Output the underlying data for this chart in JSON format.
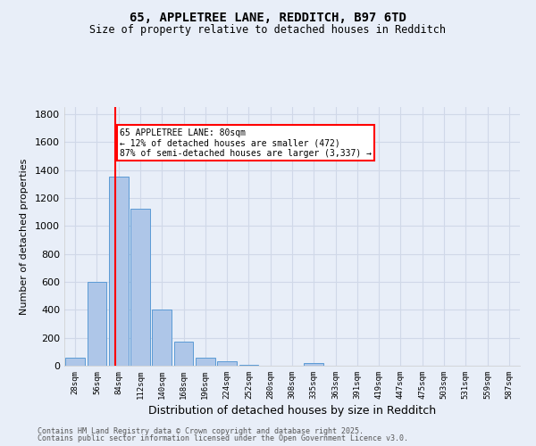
{
  "title1": "65, APPLETREE LANE, REDDITCH, B97 6TD",
  "title2": "Size of property relative to detached houses in Redditch",
  "xlabel": "Distribution of detached houses by size in Redditch",
  "ylabel": "Number of detached properties",
  "categories": [
    "28sqm",
    "56sqm",
    "84sqm",
    "112sqm",
    "140sqm",
    "168sqm",
    "196sqm",
    "224sqm",
    "252sqm",
    "280sqm",
    "308sqm",
    "335sqm",
    "363sqm",
    "391sqm",
    "419sqm",
    "447sqm",
    "475sqm",
    "503sqm",
    "531sqm",
    "559sqm",
    "587sqm"
  ],
  "values": [
    60,
    600,
    1350,
    1120,
    400,
    170,
    60,
    35,
    5,
    0,
    0,
    18,
    0,
    0,
    0,
    0,
    0,
    0,
    0,
    0,
    0
  ],
  "bar_color": "#aec6e8",
  "bar_edge_color": "#5b9bd5",
  "red_line_x": 1.85,
  "annotation_text": "65 APPLETREE LANE: 80sqm\n← 12% of detached houses are smaller (472)\n87% of semi-detached houses are larger (3,337) →",
  "annotation_box_color": "white",
  "annotation_box_edge_color": "red",
  "ylim": [
    0,
    1850
  ],
  "yticks": [
    0,
    200,
    400,
    600,
    800,
    1000,
    1200,
    1400,
    1600,
    1800
  ],
  "grid_color": "#d0d8e8",
  "background_color": "#e8eef8",
  "footer1": "Contains HM Land Registry data © Crown copyright and database right 2025.",
  "footer2": "Contains public sector information licensed under the Open Government Licence v3.0."
}
